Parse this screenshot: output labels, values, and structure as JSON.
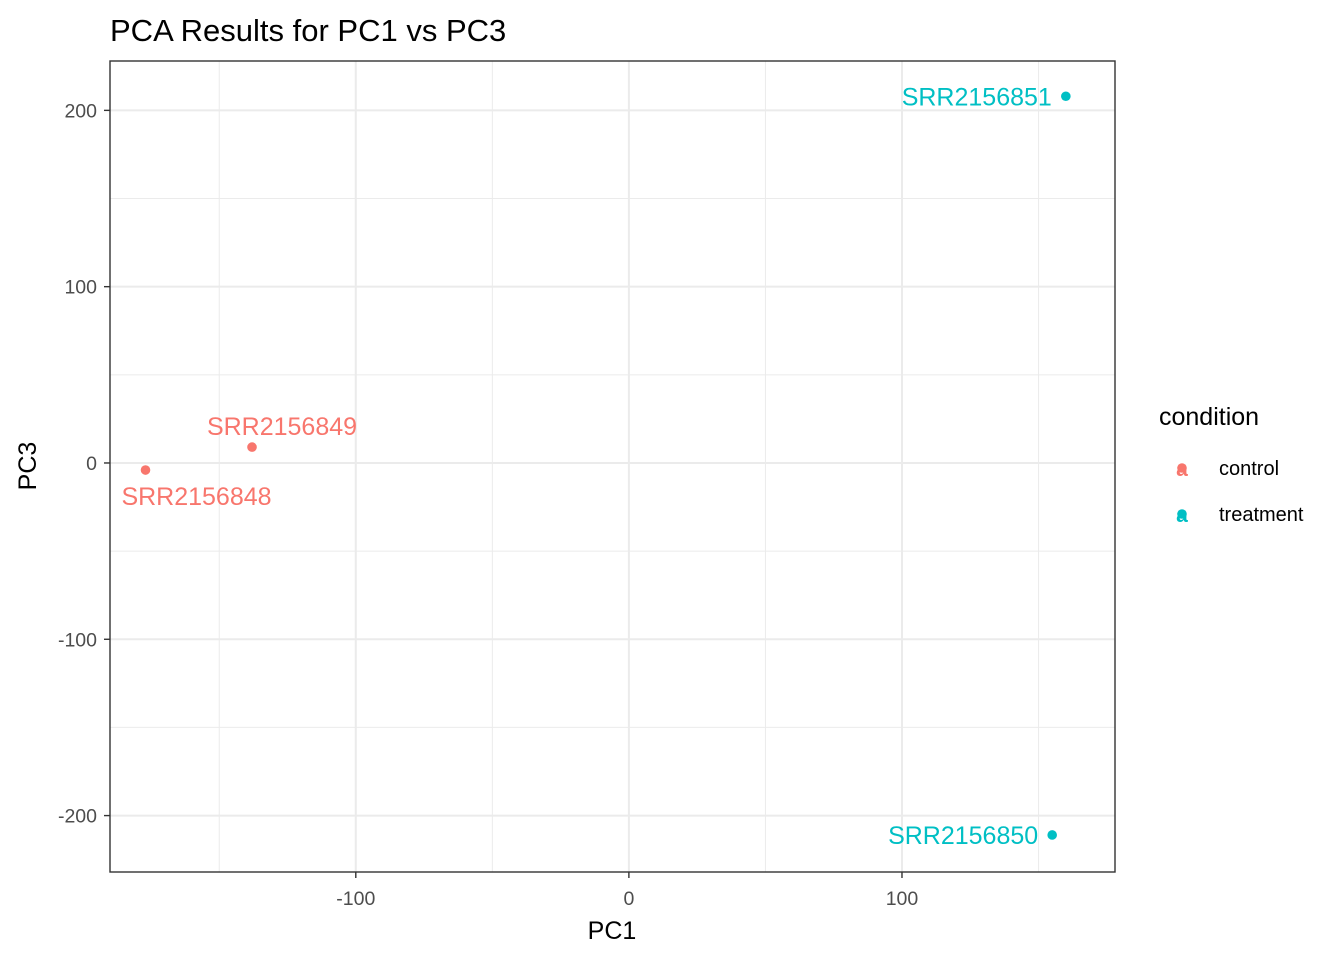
{
  "chart_data": {
    "type": "scatter",
    "title": "PCA Results for PC1 vs PC3",
    "xlabel": "PC1",
    "ylabel": "PC3",
    "xlim": [
      -190,
      178
    ],
    "ylim": [
      -232,
      228
    ],
    "x_ticks": [
      -100,
      0,
      100
    ],
    "x_tick_labels": [
      "-100",
      "0",
      "100"
    ],
    "y_ticks": [
      -200,
      -100,
      0,
      100,
      200
    ],
    "y_tick_labels": [
      "-200",
      "-100",
      "0",
      "100",
      "200"
    ],
    "grid": true,
    "legend_position": "right",
    "legend": {
      "title": "condition",
      "entries": [
        {
          "label": "control",
          "color": "#F8766D"
        },
        {
          "label": "treatment",
          "color": "#00BFC4"
        }
      ]
    },
    "points": [
      {
        "label": "SRR2156848",
        "x": -177,
        "y": -4,
        "condition": "control"
      },
      {
        "label": "SRR2156849",
        "x": -138,
        "y": 9,
        "condition": "control"
      },
      {
        "label": "SRR2156850",
        "x": 155,
        "y": -211,
        "condition": "treatment"
      },
      {
        "label": "SRR2156851",
        "x": 160,
        "y": 208,
        "condition": "treatment"
      }
    ]
  }
}
